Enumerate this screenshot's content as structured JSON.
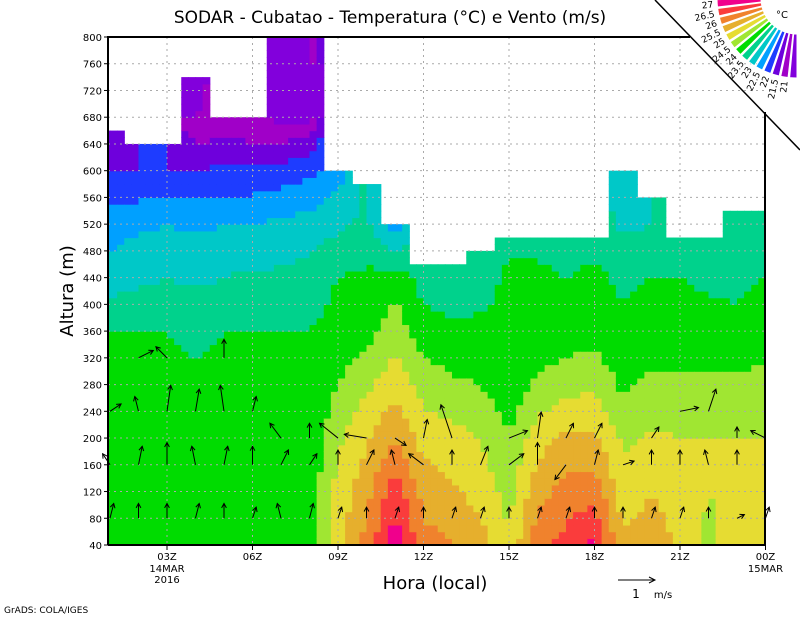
{
  "chart_data": {
    "type": "heatmap",
    "title": "SODAR - Cubatao - Temperatura (°C) e Vento (m/s)",
    "xlabel": "Hora (local)",
    "ylabel": "Altura (m)",
    "ylim": [
      40,
      800
    ],
    "y_ticks": [
      "40",
      "80",
      "120",
      "160",
      "200",
      "240",
      "280",
      "320",
      "360",
      "400",
      "440",
      "480",
      "520",
      "560",
      "600",
      "640",
      "680",
      "720",
      "760",
      "800"
    ],
    "x_ticks": [
      {
        "hour": 3,
        "label": "03Z",
        "sub1": "14MAR",
        "sub2": "2016"
      },
      {
        "hour": 6,
        "label": "06Z"
      },
      {
        "hour": 9,
        "label": "09Z"
      },
      {
        "hour": 12,
        "label": "12Z"
      },
      {
        "hour": 15,
        "label": "15Z"
      },
      {
        "hour": 18,
        "label": "18Z"
      },
      {
        "hour": 21,
        "label": "21Z"
      },
      {
        "hour": 24,
        "label": "00Z",
        "sub1": "15MAR"
      }
    ],
    "hours": [
      1,
      2,
      3,
      4,
      5,
      6,
      7,
      8,
      9,
      10,
      11,
      12,
      13,
      14,
      15,
      16,
      17,
      18,
      19,
      20,
      21,
      22,
      23,
      24
    ],
    "heights": [
      40,
      120,
      200,
      280,
      360,
      440,
      520,
      600,
      680,
      760
    ],
    "data_top_m": [
      660,
      640,
      640,
      740,
      680,
      680,
      800,
      800,
      600,
      580,
      520,
      460,
      460,
      480,
      500,
      500,
      500,
      500,
      600,
      560,
      500,
      500,
      540,
      540
    ],
    "temperature_c": [
      [
        24.3,
        24.2,
        24.1,
        24.1,
        24.0,
        23.2,
        22.8,
        22.0,
        21.8,
        null
      ],
      [
        24.2,
        24.2,
        24.1,
        24.1,
        24.0,
        23.4,
        22.9,
        22.0,
        null,
        null
      ],
      [
        24.2,
        24.2,
        24.1,
        24.1,
        24.0,
        23.5,
        23.0,
        22.0,
        null,
        null
      ],
      [
        24.2,
        24.2,
        24.1,
        24.1,
        23.9,
        23.4,
        22.9,
        22.0,
        21.0,
        20.8
      ],
      [
        24.2,
        24.2,
        24.1,
        24.1,
        24.0,
        23.5,
        23.0,
        22.1,
        21.2,
        null
      ],
      [
        24.2,
        24.2,
        24.1,
        24.1,
        24.0,
        23.6,
        23.0,
        22.1,
        21.0,
        null
      ],
      [
        24.2,
        24.2,
        24.1,
        24.1,
        24.0,
        23.6,
        23.1,
        22.2,
        20.9,
        20.8
      ],
      [
        24.3,
        24.2,
        24.1,
        24.1,
        24.0,
        23.7,
        23.2,
        22.4,
        20.9,
        20.8
      ],
      [
        25.3,
        25.2,
        24.9,
        24.5,
        24.2,
        24.0,
        23.4,
        22.8,
        null,
        null
      ],
      [
        26.2,
        25.8,
        25.4,
        24.9,
        24.3,
        24.1,
        23.6,
        null,
        null,
        null
      ],
      [
        27.3,
        26.8,
        26.0,
        25.3,
        24.8,
        24.3,
        22.6,
        null,
        null,
        null
      ],
      [
        26.2,
        25.8,
        25.3,
        24.8,
        24.2,
        23.8,
        null,
        null,
        null,
        null
      ],
      [
        26.0,
        25.6,
        25.2,
        24.6,
        24.1,
        23.7,
        null,
        null,
        null,
        null
      ],
      [
        25.7,
        25.3,
        25.0,
        24.5,
        24.1,
        23.8,
        null,
        null,
        null,
        null
      ],
      [
        25.1,
        24.8,
        24.5,
        24.2,
        24.1,
        24.1,
        23.8,
        null,
        null,
        null
      ],
      [
        26.3,
        25.8,
        25.3,
        24.6,
        24.2,
        24.1,
        23.8,
        null,
        null,
        null
      ],
      [
        26.7,
        26.2,
        25.6,
        24.8,
        24.2,
        24.0,
        23.7,
        null,
        null,
        null
      ],
      [
        27.1,
        26.3,
        25.6,
        24.9,
        24.3,
        24.1,
        23.8,
        null,
        null,
        null
      ],
      [
        25.6,
        25.2,
        24.9,
        24.4,
        24.1,
        23.9,
        23.4,
        23.1,
        null,
        null
      ],
      [
        25.8,
        25.5,
        25.1,
        24.6,
        24.2,
        24.0,
        23.5,
        null,
        null,
        null
      ],
      [
        25.4,
        25.2,
        25.0,
        24.6,
        24.2,
        24.0,
        23.7,
        null,
        null,
        null
      ],
      [
        24.9,
        25.0,
        25.0,
        24.6,
        24.2,
        23.9,
        23.6,
        null,
        null,
        null
      ],
      [
        25.2,
        25.1,
        25.0,
        24.6,
        24.1,
        23.9,
        23.6,
        null,
        null,
        null
      ],
      [
        25.3,
        25.2,
        25.0,
        24.7,
        24.2,
        24.0,
        23.6,
        null,
        null,
        null
      ]
    ],
    "wind_vectors_ms": [
      {
        "hour": 1,
        "h": 80,
        "u": 0.1,
        "v": 0.4
      },
      {
        "hour": 1,
        "h": 160,
        "u": -0.2,
        "v": 0.3
      },
      {
        "hour": 1,
        "h": 240,
        "u": 0.3,
        "v": 0.2
      },
      {
        "hour": 2,
        "h": 80,
        "u": 0.0,
        "v": 0.4
      },
      {
        "hour": 2,
        "h": 160,
        "u": 0.1,
        "v": 0.5
      },
      {
        "hour": 2,
        "h": 240,
        "u": -0.1,
        "v": 0.4
      },
      {
        "hour": 2,
        "h": 320,
        "u": 0.4,
        "v": 0.2
      },
      {
        "hour": 3,
        "h": 80,
        "u": 0.0,
        "v": 0.4
      },
      {
        "hour": 3,
        "h": 160,
        "u": 0.0,
        "v": 0.6
      },
      {
        "hour": 3,
        "h": 240,
        "u": 0.1,
        "v": 0.7
      },
      {
        "hour": 3,
        "h": 320,
        "u": -0.3,
        "v": 0.3
      },
      {
        "hour": 4,
        "h": 80,
        "u": 0.1,
        "v": 0.4
      },
      {
        "hour": 4,
        "h": 160,
        "u": -0.1,
        "v": 0.5
      },
      {
        "hour": 4,
        "h": 240,
        "u": 0.1,
        "v": 0.6
      },
      {
        "hour": 5,
        "h": 80,
        "u": 0.0,
        "v": 0.4
      },
      {
        "hour": 5,
        "h": 160,
        "u": 0.1,
        "v": 0.5
      },
      {
        "hour": 5,
        "h": 240,
        "u": -0.1,
        "v": 0.7
      },
      {
        "hour": 5,
        "h": 320,
        "u": 0.0,
        "v": 0.5
      },
      {
        "hour": 6,
        "h": 80,
        "u": 0.1,
        "v": 0.3
      },
      {
        "hour": 6,
        "h": 160,
        "u": 0.0,
        "v": 0.5
      },
      {
        "hour": 6,
        "h": 240,
        "u": 0.1,
        "v": 0.4
      },
      {
        "hour": 7,
        "h": 80,
        "u": -0.1,
        "v": 0.4
      },
      {
        "hour": 7,
        "h": 160,
        "u": 0.2,
        "v": 0.4
      },
      {
        "hour": 7,
        "h": 200,
        "u": -0.3,
        "v": 0.4
      },
      {
        "hour": 8,
        "h": 80,
        "u": 0.1,
        "v": 0.4
      },
      {
        "hour": 8,
        "h": 160,
        "u": 0.2,
        "v": 0.3
      },
      {
        "hour": 8,
        "h": 200,
        "u": 0.0,
        "v": 0.4
      },
      {
        "hour": 9,
        "h": 80,
        "u": 0.1,
        "v": 0.3
      },
      {
        "hour": 9,
        "h": 160,
        "u": 0.0,
        "v": 0.4
      },
      {
        "hour": 9,
        "h": 200,
        "u": -0.5,
        "v": 0.4
      },
      {
        "hour": 10,
        "h": 80,
        "u": 0.0,
        "v": 0.3
      },
      {
        "hour": 10,
        "h": 160,
        "u": 0.2,
        "v": 0.4
      },
      {
        "hour": 10,
        "h": 200,
        "u": -0.6,
        "v": 0.1
      },
      {
        "hour": 11,
        "h": 80,
        "u": 0.1,
        "v": 0.3
      },
      {
        "hour": 11,
        "h": 160,
        "u": -0.1,
        "v": 0.4
      },
      {
        "hour": 11,
        "h": 200,
        "u": 0.3,
        "v": -0.2
      },
      {
        "hour": 12,
        "h": 80,
        "u": 0.0,
        "v": 0.3
      },
      {
        "hour": 12,
        "h": 160,
        "u": -0.4,
        "v": 0.3
      },
      {
        "hour": 12,
        "h": 200,
        "u": 0.1,
        "v": 0.5
      },
      {
        "hour": 13,
        "h": 80,
        "u": 0.1,
        "v": 0.3
      },
      {
        "hour": 13,
        "h": 160,
        "u": 0.0,
        "v": 0.4
      },
      {
        "hour": 13,
        "h": 200,
        "u": -0.3,
        "v": 0.9
      },
      {
        "hour": 14,
        "h": 80,
        "u": 0.1,
        "v": 0.3
      },
      {
        "hour": 14,
        "h": 160,
        "u": 0.2,
        "v": 0.5
      },
      {
        "hour": 15,
        "h": 80,
        "u": 0.0,
        "v": 0.3
      },
      {
        "hour": 15,
        "h": 160,
        "u": 0.4,
        "v": 0.3
      },
      {
        "hour": 15,
        "h": 200,
        "u": 0.5,
        "v": 0.2
      },
      {
        "hour": 16,
        "h": 80,
        "u": 0.1,
        "v": 0.3
      },
      {
        "hour": 16,
        "h": 160,
        "u": 0.0,
        "v": 0.6
      },
      {
        "hour": 16,
        "h": 200,
        "u": 0.1,
        "v": 0.7
      },
      {
        "hour": 17,
        "h": 80,
        "u": 0.1,
        "v": 0.3
      },
      {
        "hour": 17,
        "h": 160,
        "u": -0.3,
        "v": -0.4
      },
      {
        "hour": 17,
        "h": 200,
        "u": 0.2,
        "v": 0.4
      },
      {
        "hour": 18,
        "h": 80,
        "u": 0.0,
        "v": 0.3
      },
      {
        "hour": 18,
        "h": 160,
        "u": 0.1,
        "v": 0.4
      },
      {
        "hour": 18,
        "h": 200,
        "u": 0.2,
        "v": 0.4
      },
      {
        "hour": 19,
        "h": 80,
        "u": 0.0,
        "v": 0.3
      },
      {
        "hour": 19,
        "h": 160,
        "u": 0.3,
        "v": 0.1
      },
      {
        "hour": 20,
        "h": 80,
        "u": 0.1,
        "v": 0.3
      },
      {
        "hour": 20,
        "h": 160,
        "u": 0.0,
        "v": 0.4
      },
      {
        "hour": 20,
        "h": 200,
        "u": 0.2,
        "v": 0.3
      },
      {
        "hour": 21,
        "h": 80,
        "u": 0.1,
        "v": 0.3
      },
      {
        "hour": 21,
        "h": 160,
        "u": 0.0,
        "v": 0.4
      },
      {
        "hour": 21,
        "h": 240,
        "u": 0.5,
        "v": 0.1
      },
      {
        "hour": 22,
        "h": 80,
        "u": 0.0,
        "v": 0.3
      },
      {
        "hour": 22,
        "h": 160,
        "u": -0.1,
        "v": 0.4
      },
      {
        "hour": 22,
        "h": 240,
        "u": 0.2,
        "v": 0.6
      },
      {
        "hour": 23,
        "h": 80,
        "u": 0.2,
        "v": 0.1
      },
      {
        "hour": 23,
        "h": 160,
        "u": 0.0,
        "v": 0.4
      },
      {
        "hour": 23,
        "h": 200,
        "u": 0.0,
        "v": 0.3
      },
      {
        "hour": 24,
        "h": 80,
        "u": 0.1,
        "v": 0.3
      },
      {
        "hour": 24,
        "h": 200,
        "u": -0.4,
        "v": 0.2
      }
    ],
    "colorbar": {
      "unit": "°C",
      "labels": [
        "27",
        "26.5",
        "26",
        "25.5",
        "25",
        "24.5",
        "24",
        "23.5",
        "23",
        "22.5",
        "22",
        "21.5",
        "21"
      ],
      "thresholds": [
        27,
        26.5,
        26,
        25.5,
        25,
        24.5,
        24,
        23.5,
        23,
        22.5,
        22,
        21.5,
        21
      ],
      "colors": [
        "#f0008c",
        "#fa3c3c",
        "#f0822d",
        "#e6af2d",
        "#e6dc32",
        "#a0e632",
        "#00dc00",
        "#00d28c",
        "#00c8c8",
        "#00a0ff",
        "#1e3cff",
        "#6e00dc",
        "#a000c8",
        "#8200dc"
      ]
    },
    "reference_vector": {
      "value": "1",
      "unit": "m/s"
    }
  },
  "footer": {
    "credit": "GrADS: COLA/IGES"
  }
}
